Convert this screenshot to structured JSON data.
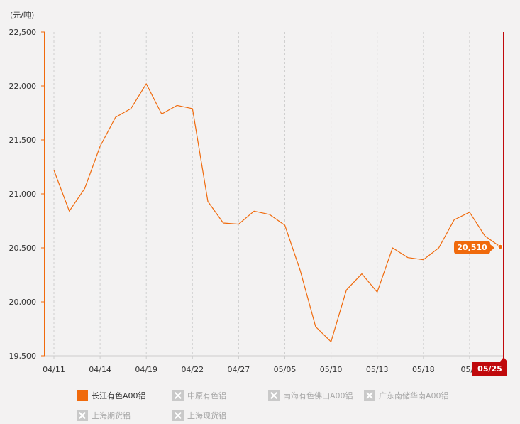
{
  "chart_data": {
    "type": "line",
    "unit_label": "(元/吨)",
    "y_ticks": [
      "22,500",
      "22,000",
      "21,500",
      "21,000",
      "20,500",
      "20,000",
      "19,500"
    ],
    "y_tick_values": [
      22500,
      22000,
      21500,
      21000,
      20500,
      20000,
      19500
    ],
    "ylim": [
      19500,
      22500
    ],
    "x_tick_labels": [
      "04/11",
      "04/14",
      "04/19",
      "04/22",
      "04/27",
      "05/05",
      "05/10",
      "05/13",
      "05/18",
      "05/2",
      "05/25"
    ],
    "x_tick_index": [
      0,
      3,
      6,
      9,
      12,
      15,
      18,
      21,
      24,
      27,
      30
    ],
    "grid": "vertical dashed",
    "legend_position": "bottom",
    "series": [
      {
        "name": "长江有色A00铝",
        "color": "#f06a0c",
        "values": [
          21220,
          20840,
          21050,
          21440,
          21710,
          21790,
          22020,
          21740,
          21820,
          21790,
          20930,
          20730,
          20720,
          20840,
          20810,
          20710,
          20290,
          19770,
          19630,
          20110,
          20260,
          20090,
          20500,
          20410,
          20390,
          20500,
          20760,
          20830,
          20610,
          20510
        ]
      }
    ],
    "tooltip_value": "20,510",
    "crosshair_label": "05/25"
  },
  "legend": {
    "items": [
      {
        "label": "长江有色A00铝",
        "active": true
      },
      {
        "label": "中原有色铝",
        "active": false
      },
      {
        "label": "南海有色佛山A00铝",
        "active": false
      },
      {
        "label": "广东南储华南A00铝",
        "active": false
      },
      {
        "label": "上海期货铝",
        "active": false
      },
      {
        "label": "上海现货铝",
        "active": false
      }
    ]
  },
  "colors": {
    "series": "#f06a0c",
    "crosshair": "#c0090c",
    "background": "#f3f2f2"
  }
}
